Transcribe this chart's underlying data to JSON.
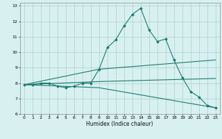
{
  "xlabel": "Humidex (Indice chaleur)",
  "bg_color": "#d8f0f0",
  "grid_color": "#aacfcf",
  "line_color": "#1a7a6e",
  "xlim": [
    -0.5,
    23.5
  ],
  "ylim": [
    6,
    13.2
  ],
  "xticks": [
    0,
    1,
    2,
    3,
    4,
    5,
    6,
    7,
    8,
    9,
    10,
    11,
    12,
    13,
    14,
    15,
    16,
    17,
    18,
    19,
    20,
    21,
    22,
    23
  ],
  "yticks": [
    6,
    7,
    8,
    9,
    10,
    11,
    12,
    13
  ],
  "curve1_x": [
    0,
    1,
    2,
    3,
    4,
    5,
    6,
    7,
    8,
    9,
    10,
    11,
    12,
    13,
    14,
    15,
    16,
    17,
    18,
    19,
    20,
    21,
    22,
    23
  ],
  "curve1_y": [
    7.9,
    7.9,
    8.0,
    8.0,
    7.8,
    7.7,
    7.8,
    8.0,
    8.0,
    8.9,
    10.3,
    10.8,
    11.7,
    12.45,
    12.85,
    11.45,
    10.7,
    10.85,
    9.5,
    8.35,
    7.45,
    7.1,
    6.55,
    6.4
  ],
  "curve2_x": [
    0,
    9,
    23
  ],
  "curve2_y": [
    7.9,
    8.9,
    9.5
  ],
  "curve3_x": [
    0,
    9,
    23
  ],
  "curve3_y": [
    7.9,
    8.1,
    8.3
  ],
  "curve4_x": [
    0,
    9,
    23
  ],
  "curve4_y": [
    7.9,
    7.7,
    6.4
  ]
}
